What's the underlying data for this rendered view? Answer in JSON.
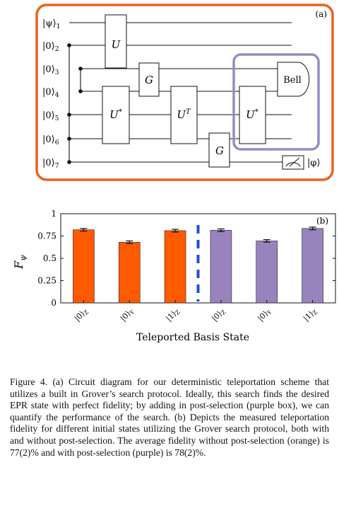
{
  "panel_a": {
    "label": "(a)",
    "qubits": [
      "|ψ⟩",
      "|0⟩",
      "|0⟩",
      "|0⟩",
      "|0⟩",
      "|0⟩",
      "|0⟩"
    ],
    "qubit_indices": [
      "1",
      "2",
      "3",
      "4",
      "5",
      "6",
      "7"
    ],
    "gates": {
      "u": "U",
      "g1": "G",
      "u_star1": "U",
      "u_star1_sup": "*",
      "u_t": "U",
      "u_t_sup": "T",
      "g2": "G",
      "u_star2": "U",
      "u_star2_sup": "*",
      "bell": "Bell"
    },
    "output_state": "|φ⟩",
    "colors": {
      "outer_box": "#e8641c",
      "post_selection_box": "#9b8ac4"
    }
  },
  "chart_data": {
    "type": "bar",
    "label": "(b)",
    "categories": [
      "|0⟩",
      "|0⟩",
      "|1⟩",
      "|0⟩",
      "|0⟩",
      "|1⟩"
    ],
    "category_subscripts": [
      "Z",
      "Y",
      "Z",
      "Z",
      "Y",
      "Z"
    ],
    "series": [
      {
        "values": [
          0.82,
          0.68,
          0.81,
          null,
          null,
          null
        ],
        "errors": [
          0.015,
          0.015,
          0.015,
          null,
          null,
          null
        ],
        "color": "#ff5a00"
      },
      {
        "values": [
          null,
          null,
          null,
          0.815,
          0.695,
          0.835
        ],
        "errors": [
          null,
          null,
          null,
          0.015,
          0.015,
          0.015
        ],
        "color": "#9883bd"
      }
    ],
    "ylabel": "F",
    "ylabel_subscript": "ψ",
    "xlabel": "Teleported Basis State",
    "ylim": [
      0,
      1
    ],
    "yticks": [
      "0",
      "0.25",
      "0.5",
      "0.75",
      "1"
    ],
    "divider": {
      "after_category": 3,
      "style": "dashed",
      "color": "#1f4fd8"
    }
  },
  "caption": "Figure 4. (a) Circuit diagram for our deterministic teleportation scheme that utilizes a built in Grover’s search protocol. Ideally, this search finds the desired EPR state with perfect fidelity; by adding in post-selection (purple box), we can quantify the performance of the search. (b) Depicts the measured teleportation fidelity for different initial states utilizing the Grover search protocol, both with and without post-selection. The average fidelity without post-selection (orange) is 77(2)% and with post-selection (purple) is 78(2)%."
}
